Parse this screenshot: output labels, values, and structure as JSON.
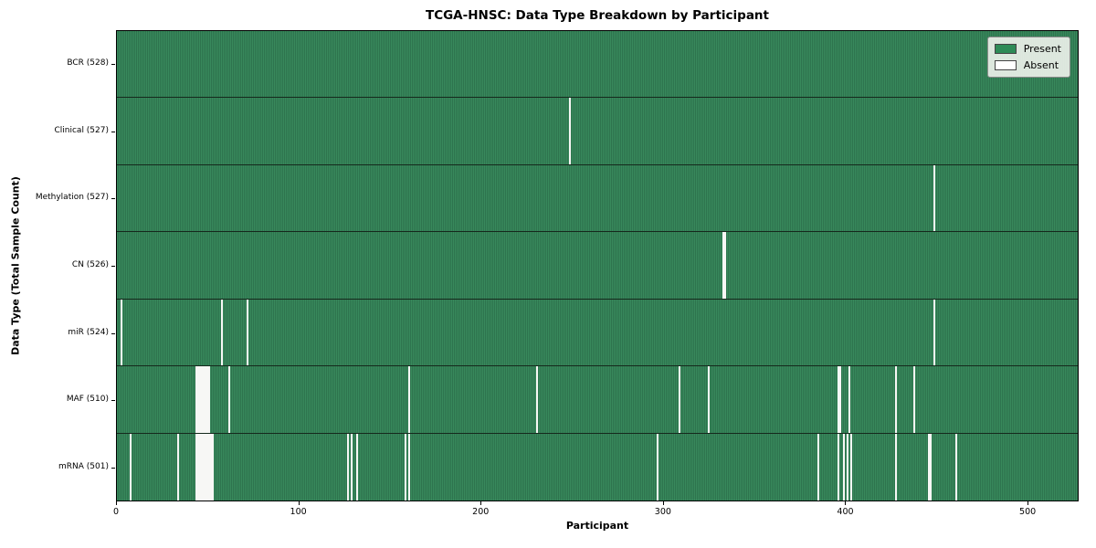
{
  "chart_data": {
    "type": "heatmap",
    "title": "TCGA-HNSC: Data Type Breakdown by Participant",
    "xlabel": "Participant",
    "ylabel": "Data Type (Total Sample Count)",
    "n_participants": 528,
    "x_ticks": [
      0,
      100,
      200,
      300,
      400,
      500
    ],
    "xlim": [
      0,
      528
    ],
    "grid": false,
    "legend_position": "upper right",
    "colors": {
      "present": "#2e8b57",
      "absent": "#ffffff",
      "stripe_light": "#38895c",
      "stripe_dark": "#245e3f"
    },
    "legend": [
      {
        "label": "Present",
        "color": "#2e8b57"
      },
      {
        "label": "Absent",
        "color": "#ffffff"
      }
    ],
    "rows": [
      {
        "label": "BCR (528)",
        "data_type": "BCR",
        "present_count": 528,
        "absent_participants": []
      },
      {
        "label": "Clinical (527)",
        "data_type": "Clinical",
        "present_count": 527,
        "absent_participants": [
          248
        ]
      },
      {
        "label": "Methylation (527)",
        "data_type": "Methylation",
        "present_count": 527,
        "absent_participants": [
          448
        ]
      },
      {
        "label": "CN (526)",
        "data_type": "CN",
        "present_count": 526,
        "absent_participants": [
          332,
          333
        ]
      },
      {
        "label": "miR (524)",
        "data_type": "miR",
        "present_count": 524,
        "absent_participants": [
          2,
          57,
          71,
          448
        ]
      },
      {
        "label": "MAF (510)",
        "data_type": "MAF",
        "present_count": 510,
        "absent_participants": [
          43,
          44,
          45,
          46,
          47,
          48,
          49,
          50,
          61,
          160,
          230,
          308,
          324,
          395,
          396,
          401,
          427,
          437
        ]
      },
      {
        "label": "mRNA (501)",
        "data_type": "mRNA",
        "present_count": 501,
        "absent_participants": [
          7,
          33,
          43,
          44,
          45,
          46,
          47,
          48,
          49,
          50,
          51,
          52,
          126,
          128,
          131,
          158,
          160,
          296,
          384,
          395,
          398,
          400,
          402,
          427,
          445,
          446,
          460
        ]
      }
    ]
  }
}
